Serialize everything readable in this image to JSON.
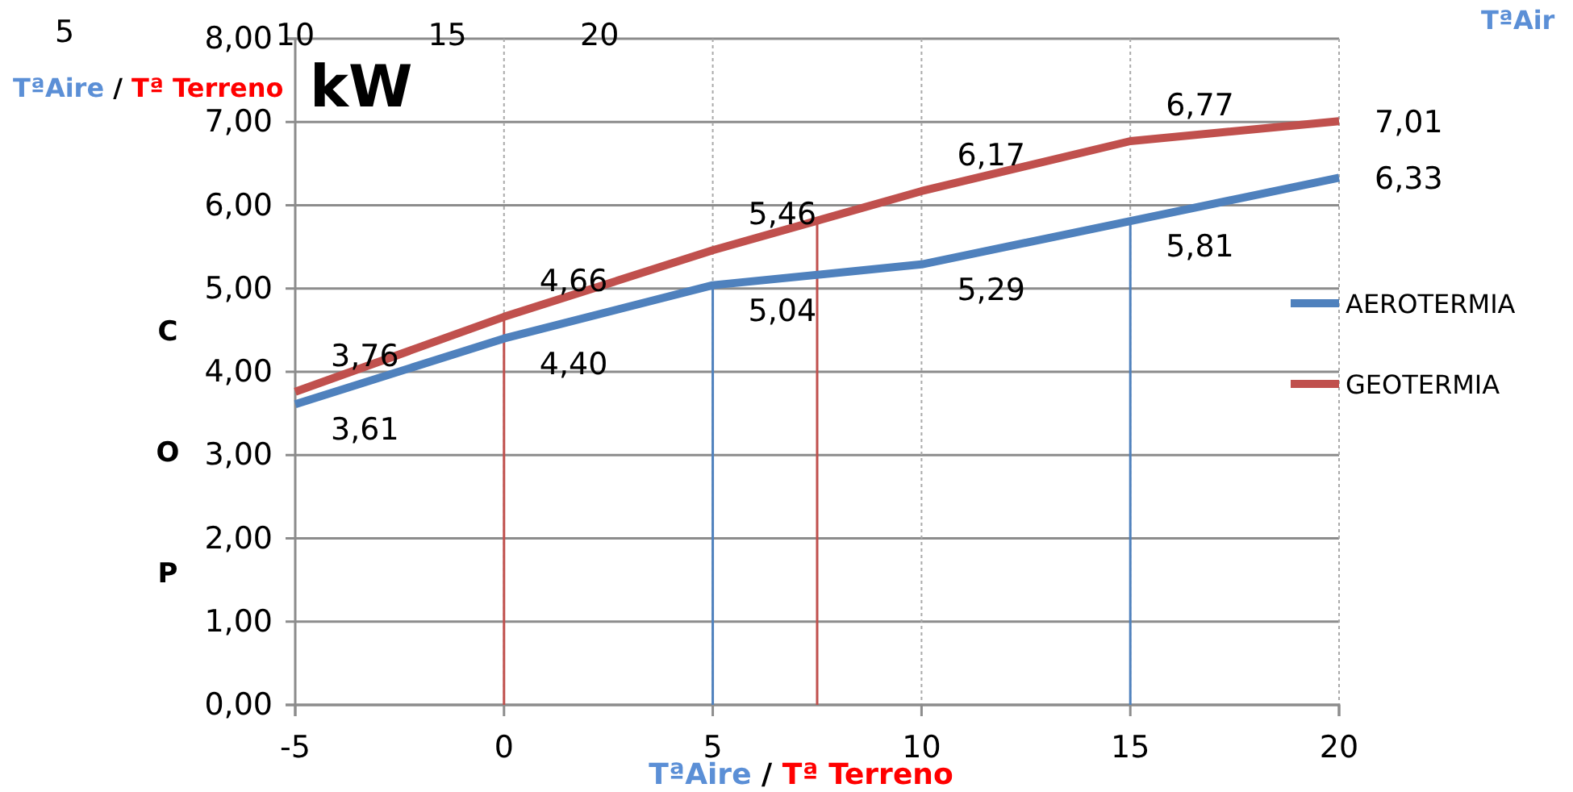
{
  "chart_data": {
    "type": "line",
    "ylabel": "COP",
    "xlabel": "TªAire / Tª Terreno",
    "x": [
      -5,
      0,
      5,
      10,
      15,
      20
    ],
    "series": [
      {
        "name": "AEROTERMIA",
        "color": "#4f81bd",
        "values": [
          3.61,
          4.4,
          5.04,
          5.29,
          5.81,
          6.33
        ],
        "value_labels": [
          "3,61",
          "4,40",
          "5,04",
          "5,29",
          "5,81",
          "6,33"
        ]
      },
      {
        "name": "GEOTERMIA",
        "color": "#c0504d",
        "values": [
          3.76,
          4.66,
          5.46,
          6.17,
          6.77,
          7.01
        ],
        "value_labels": [
          "3,76",
          "4,66",
          "5,46",
          "6,17",
          "6,77",
          "7,01"
        ]
      }
    ],
    "xlim": [
      -5,
      20
    ],
    "xticks": [
      -5,
      0,
      5,
      10,
      15,
      20
    ],
    "ylim": [
      0,
      8
    ],
    "yticks": [
      {
        "value": 0,
        "label": "0,00"
      },
      {
        "value": 1,
        "label": "1,00"
      },
      {
        "value": 2,
        "label": "2,00"
      },
      {
        "value": 3,
        "label": "3,00"
      },
      {
        "value": 4,
        "label": "4,00"
      },
      {
        "value": 5,
        "label": "5,00"
      },
      {
        "value": 6,
        "label": "6,00"
      },
      {
        "value": 7,
        "label": "7,00"
      },
      {
        "value": 8,
        "label": "8,00"
      }
    ],
    "x2lim": [
      10,
      44.3
    ],
    "x2ticks": [
      10,
      15,
      20
    ],
    "ref_lines": [
      {
        "axis": "x",
        "value": 0,
        "color": "#c0504d"
      },
      {
        "axis": "x",
        "value": 5,
        "color": "#4f81bd"
      },
      {
        "axis": "x",
        "value": 7.5,
        "color": "#c0504d"
      },
      {
        "axis": "x",
        "value": 15,
        "color": "#4f81bd"
      }
    ],
    "annotations": [
      "5",
      "kW",
      "TªAire / Tª Terreno",
      "TªAir"
    ],
    "grid": true,
    "legend": "right",
    "marker": "none",
    "line_style": "solid"
  }
}
